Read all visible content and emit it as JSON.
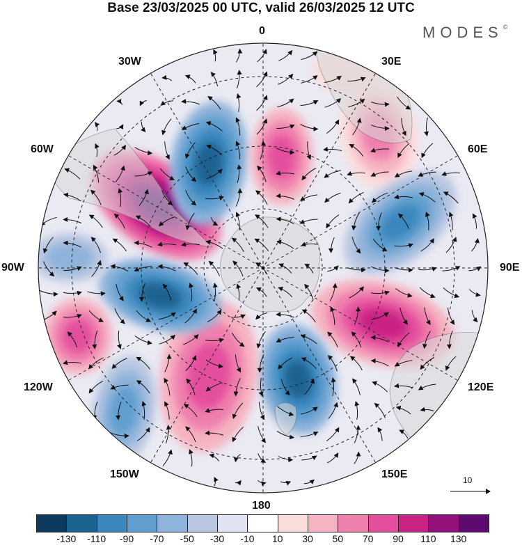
{
  "header": {
    "title": "Base 23/03/2025 00 UTC, valid 26/03/2025 12 UTC",
    "brand": "MODES",
    "brand_mark": "©"
  },
  "map": {
    "projection": "south-polar-stereographic",
    "longitude_labels": {
      "lon_0": "0",
      "lon_30e": "30E",
      "lon_60e": "60E",
      "lon_90e": "90E",
      "lon_120e": "120E",
      "lon_150e": "150E",
      "lon_180": "180",
      "lon_150w": "150W",
      "lon_120w": "120W",
      "lon_90w": "90W",
      "lon_60w": "60W",
      "lon_30w": "30W"
    },
    "graticule": "dashed",
    "field": "anomaly",
    "vectors": "wind"
  },
  "reference_vector": {
    "label": "10"
  },
  "colorbar": {
    "colors": [
      "#0d3a5c",
      "#1c6291",
      "#3b87bd",
      "#609fcf",
      "#8fb3da",
      "#b9c7e2",
      "#e1e3f0",
      "#ffffff",
      "#fbdcdc",
      "#f6b3c1",
      "#ef80ae",
      "#e44f9d",
      "#c92484",
      "#94117a",
      "#5e0a71"
    ],
    "ticks": [
      "-130",
      "-110",
      "-90",
      "-70",
      "-50",
      "-30",
      "-10",
      "10",
      "30",
      "50",
      "70",
      "90",
      "110",
      "130"
    ]
  }
}
